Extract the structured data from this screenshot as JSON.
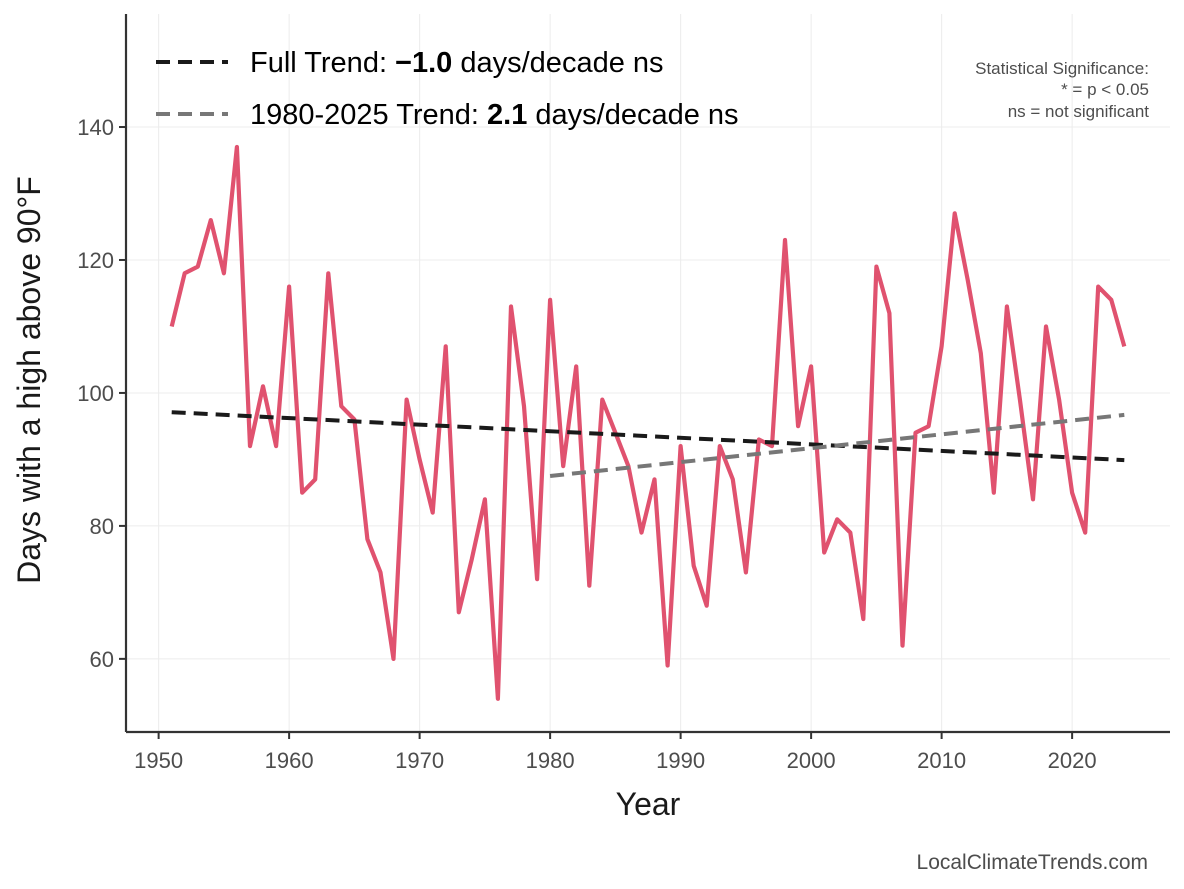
{
  "chart_data": {
    "type": "line",
    "xlabel": "Year",
    "ylabel": "Days with a high above 90°F",
    "xlim": [
      1947.5,
      2027.5
    ],
    "ylim": [
      49,
      157
    ],
    "x_ticks": [
      1950,
      1960,
      1970,
      1980,
      1990,
      2000,
      2010,
      2020
    ],
    "y_ticks": [
      60,
      80,
      100,
      120,
      140
    ],
    "grid": true,
    "legend_position": "top-left",
    "series": [
      {
        "color": "#e0526f",
        "x": [
          1951,
          1952,
          1953,
          1954,
          1955,
          1956,
          1957,
          1958,
          1959,
          1960,
          1961,
          1962,
          1963,
          1964,
          1965,
          1966,
          1967,
          1968,
          1969,
          1970,
          1971,
          1972,
          1973,
          1974,
          1975,
          1976,
          1977,
          1978,
          1979,
          1980,
          1981,
          1982,
          1983,
          1984,
          1985,
          1986,
          1987,
          1988,
          1989,
          1990,
          1991,
          1992,
          1993,
          1994,
          1995,
          1996,
          1997,
          1998,
          1999,
          2000,
          2001,
          2002,
          2003,
          2004,
          2005,
          2006,
          2007,
          2008,
          2009,
          2010,
          2011,
          2012,
          2013,
          2014,
          2015,
          2016,
          2017,
          2018,
          2019,
          2020,
          2021,
          2022,
          2023,
          2024
        ],
        "y": [
          110,
          118,
          119,
          126,
          118,
          137,
          92,
          101,
          92,
          116,
          85,
          87,
          118,
          98,
          96,
          78,
          73,
          60,
          99,
          90,
          82,
          107,
          67,
          75,
          84,
          54,
          113,
          98,
          72,
          114,
          89,
          104,
          71,
          99,
          94,
          89,
          79,
          87,
          59,
          92,
          74,
          68,
          92,
          87,
          73,
          93,
          92,
          123,
          95,
          104,
          76,
          81,
          79,
          66,
          119,
          112,
          62,
          94,
          95,
          107,
          127,
          117,
          106,
          85,
          113,
          99,
          84,
          110,
          99,
          85,
          79,
          116,
          114,
          107
        ]
      },
      {
        "name": "Full Trend",
        "style": "dashed",
        "color": "#1a1a1a",
        "x": [
          1951,
          2024
        ],
        "y": [
          97.1,
          89.9
        ]
      },
      {
        "name": "1980-2025 Trend",
        "style": "dashed",
        "color": "#777777",
        "x": [
          1980,
          2024
        ],
        "y": [
          87.5,
          96.7
        ]
      }
    ]
  },
  "legend": [
    {
      "prefix": "Full Trend: ",
      "value": "−1.0",
      "suffix": " days/decade ns",
      "color": "#1a1a1a"
    },
    {
      "prefix": "1980-2025 Trend: ",
      "value": "2.1",
      "suffix": " days/decade ns",
      "color": "#777777"
    }
  ],
  "significance_note": [
    "Statistical Significance:",
    "* = p < 0.05",
    "ns = not significant"
  ],
  "footer": "LocalClimateTrends.com"
}
